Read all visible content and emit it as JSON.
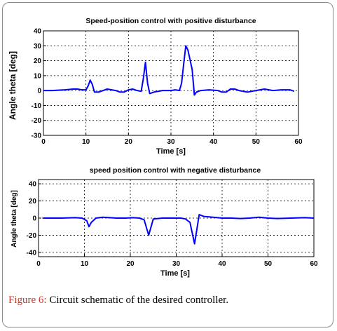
{
  "caption": {
    "label": "Figure 6:",
    "text": " Circuit schematic of the desired controller."
  },
  "chart_data": [
    {
      "type": "line",
      "title": "Speed-position control with positive disturbance",
      "xlabel": "Time [s]",
      "ylabel": "Angle theta [deg]",
      "xlim": [
        0,
        60
      ],
      "ylim": [
        -30,
        40
      ],
      "xticks": [
        0,
        10,
        20,
        30,
        40,
        50,
        60
      ],
      "yticks": [
        -30,
        -20,
        -10,
        0,
        10,
        20,
        30,
        40
      ],
      "grid": true,
      "color": "#0000ff",
      "x": [
        0,
        2,
        5,
        7,
        8,
        9,
        10,
        10.5,
        11,
        11.5,
        12,
        13,
        15,
        17,
        18,
        19,
        20,
        21,
        22,
        23,
        23.5,
        24,
        24.5,
        25,
        26,
        28,
        30,
        31,
        32,
        32.5,
        33,
        33.5,
        34,
        35,
        35.5,
        36,
        37,
        39,
        41,
        42,
        43,
        44,
        45,
        46,
        48,
        50,
        52,
        54,
        56,
        58,
        59
      ],
      "y": [
        0,
        0,
        0.5,
        1,
        1,
        0.5,
        0.5,
        3,
        7,
        4,
        -1,
        -1,
        1,
        0,
        -1,
        -1,
        0.5,
        1,
        0,
        -0.5,
        8,
        19,
        5,
        -2,
        -1,
        0,
        0,
        0.5,
        0,
        5,
        18,
        30,
        27,
        14,
        -3,
        -1,
        0,
        0.5,
        0,
        -1,
        -1,
        1,
        1,
        0,
        -1,
        0,
        1,
        0,
        0.5,
        0.5,
        -0.5
      ]
    },
    {
      "type": "line",
      "title": "speed position control with negative disturbance",
      "xlabel": "Time [s]",
      "ylabel": "Angle theta [deg]",
      "xlim": [
        0,
        60
      ],
      "ylim": [
        -45,
        45
      ],
      "xticks": [
        0,
        10,
        20,
        30,
        40,
        50,
        60
      ],
      "yticks": [
        -40,
        -20,
        0,
        20,
        40
      ],
      "grid": true,
      "color": "#0000ff",
      "x": [
        1,
        3,
        5,
        8,
        9.5,
        10.5,
        11,
        11.5,
        12.5,
        14,
        17,
        19,
        20.5,
        22,
        23,
        24,
        25,
        27,
        30,
        31,
        32,
        33,
        34,
        35,
        36,
        38,
        40,
        42,
        44,
        46,
        48,
        50,
        52,
        55,
        58,
        60
      ],
      "y": [
        0,
        0,
        0,
        0.5,
        0,
        -3,
        -10,
        -5,
        0,
        1,
        0,
        0,
        0.5,
        0,
        -2,
        -20,
        -1,
        0,
        0,
        0,
        -1,
        -5,
        -30,
        4,
        2,
        1,
        0,
        0,
        -0.5,
        0,
        1,
        0,
        -0.5,
        0,
        0.5,
        0
      ]
    }
  ]
}
